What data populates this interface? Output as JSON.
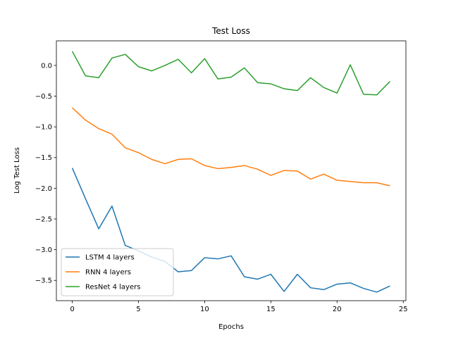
{
  "chart_data": {
    "type": "line",
    "title": "Test Loss",
    "xlabel": "Epochs",
    "ylabel": "Log Test Loss",
    "xlim": [
      -1.2,
      25.2
    ],
    "ylim": [
      -3.83,
      0.4
    ],
    "xticks": [
      0,
      5,
      10,
      15,
      20,
      25
    ],
    "yticks": [
      0.0,
      -0.5,
      -1.0,
      -1.5,
      -2.0,
      -2.5,
      -3.0,
      -3.5
    ],
    "ytick_labels": [
      "0.0",
      "−0.5",
      "−1.0",
      "−1.5",
      "−2.0",
      "−2.5",
      "−3.0",
      "−3.5"
    ],
    "legend_position": "lower-left",
    "grid": false,
    "x": [
      0,
      1,
      2,
      3,
      4,
      5,
      6,
      7,
      8,
      9,
      10,
      11,
      12,
      13,
      14,
      15,
      16,
      17,
      18,
      19,
      20,
      21,
      22,
      23,
      24
    ],
    "series": [
      {
        "name": "LSTM 4 layers",
        "color": "#1f77b4",
        "values": [
          -1.67,
          -2.17,
          -2.66,
          -2.29,
          -2.93,
          -3.02,
          -3.12,
          -3.19,
          -3.36,
          -3.34,
          -3.13,
          -3.15,
          -3.1,
          -3.44,
          -3.48,
          -3.4,
          -3.68,
          -3.4,
          -3.62,
          -3.65,
          -3.56,
          -3.54,
          -3.63,
          -3.69,
          -3.59
        ]
      },
      {
        "name": "RNN 4 layers",
        "color": "#ff7f0e",
        "values": [
          -0.69,
          -0.89,
          -1.03,
          -1.12,
          -1.34,
          -1.42,
          -1.53,
          -1.6,
          -1.53,
          -1.52,
          -1.63,
          -1.68,
          -1.66,
          -1.63,
          -1.69,
          -1.79,
          -1.71,
          -1.72,
          -1.85,
          -1.77,
          -1.87,
          -1.89,
          -1.91,
          -1.91,
          -1.96
        ]
      },
      {
        "name": "ResNet 4 layers",
        "color": "#2ca02c",
        "values": [
          0.23,
          -0.17,
          -0.2,
          0.12,
          0.18,
          -0.02,
          -0.09,
          0.0,
          0.1,
          -0.12,
          0.11,
          -0.22,
          -0.19,
          -0.04,
          -0.28,
          -0.3,
          -0.38,
          -0.41,
          -0.2,
          -0.36,
          -0.45,
          0.01,
          -0.47,
          -0.48,
          -0.26
        ]
      }
    ]
  }
}
